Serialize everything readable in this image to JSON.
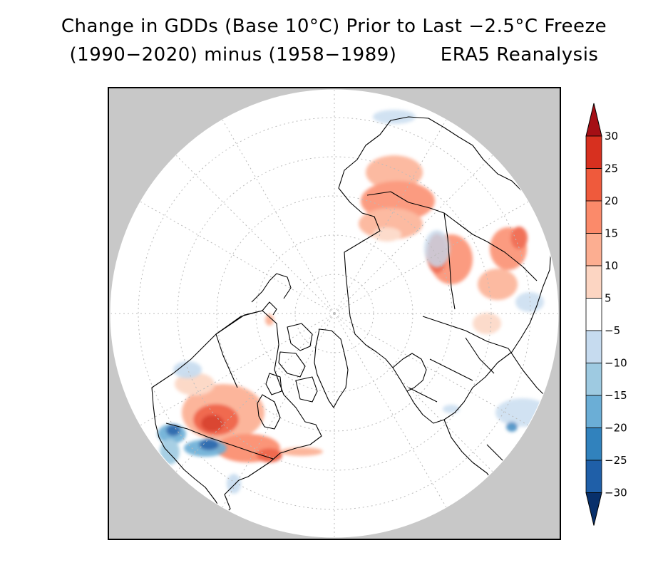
{
  "title": {
    "line1": "Change in GDDs (Base 10°C) Prior to Last −2.5°C Freeze",
    "line2": "(1990−2020) minus (1958−1989)       ERA5 Reanalysis"
  },
  "map": {
    "projection": "north polar stereographic",
    "background_color": "#c8c8c8",
    "disk_color": "#ffffff"
  },
  "colorbar": {
    "labels": [
      "30",
      "25",
      "20",
      "15",
      "10",
      "5",
      "−5",
      "−10",
      "−15",
      "−20",
      "−25",
      "−30"
    ],
    "colors": [
      "#a50f15",
      "#d7301f",
      "#ef5a3c",
      "#fb8a6a",
      "#fcae91",
      "#fcd5c2",
      "#ffffff",
      "#c6dbef",
      "#9ecae1",
      "#6baed6",
      "#3182bd",
      "#1f5fa8",
      "#08306b"
    ]
  }
}
